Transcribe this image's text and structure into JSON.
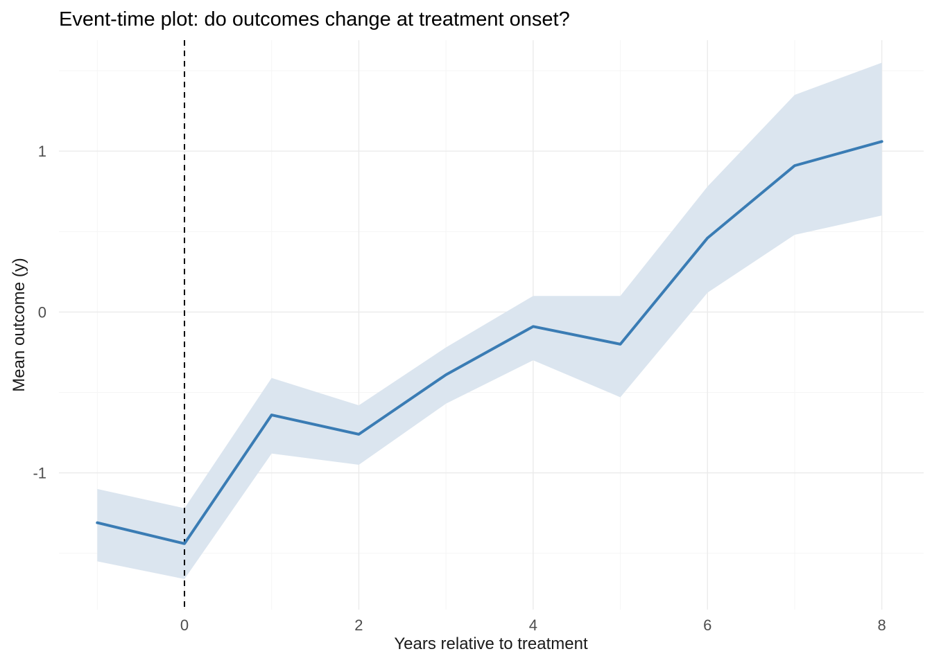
{
  "chart_data": {
    "type": "line",
    "title": "Event-time plot: do outcomes change at treatment onset?",
    "xlabel": "Years relative to treatment",
    "ylabel": "Mean outcome (y)",
    "x": [
      -1,
      0,
      1,
      2,
      3,
      4,
      5,
      6,
      7,
      8
    ],
    "series": [
      {
        "name": "mean_outcome",
        "values": [
          -1.31,
          -1.44,
          -0.64,
          -0.76,
          -0.39,
          -0.09,
          -0.2,
          0.46,
          0.91,
          1.06
        ]
      }
    ],
    "ribbon": {
      "upper": [
        -1.1,
        -1.22,
        -0.41,
        -0.58,
        -0.22,
        0.1,
        0.1,
        0.78,
        1.35,
        1.55
      ],
      "lower": [
        -1.55,
        -1.66,
        -0.88,
        -0.95,
        -0.57,
        -0.3,
        -0.53,
        0.12,
        0.48,
        0.6
      ]
    },
    "vline_x": 0,
    "xlim": [
      -1.44,
      8.48
    ],
    "ylim": [
      -1.85,
      1.69
    ],
    "x_ticks": [
      0,
      2,
      4,
      6,
      8
    ],
    "y_ticks": [
      -1,
      0,
      1
    ],
    "x_minor_ticks": [
      -1,
      1,
      3,
      5,
      7
    ],
    "y_minor_ticks": [
      -1.5,
      -0.5,
      0.5,
      1.5
    ],
    "grid": true,
    "legend": "none",
    "colors": {
      "line": "#3a7cb4",
      "ribbon": "#dbe5ef",
      "vline": "#000000",
      "grid_major": "#ebebeb",
      "grid_minor": "#f5f5f5",
      "background": "#ffffff"
    }
  }
}
